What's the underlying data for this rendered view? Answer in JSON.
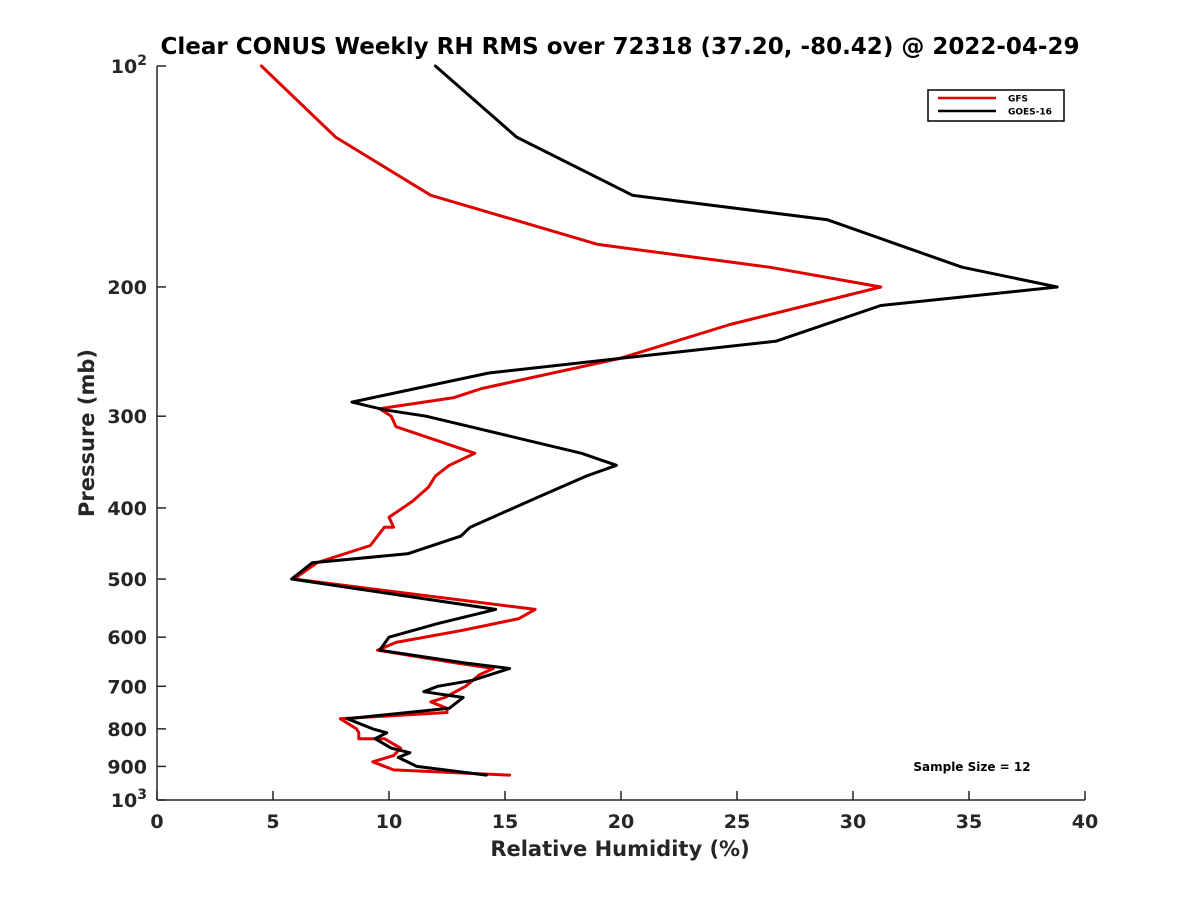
{
  "chart_data": {
    "type": "line",
    "title": "Clear CONUS Weekly RH RMS over 72318 (37.20, -80.42) @ 2022-04-29",
    "xlabel": "Relative Humidity (%)",
    "ylabel": "Pressure (mb)",
    "xlim": [
      0,
      40
    ],
    "ylim": [
      100,
      1000
    ],
    "y_scale": "log",
    "y_reversed": true,
    "x_ticks": [
      "0",
      "5",
      "10",
      "15",
      "20",
      "25",
      "30",
      "35",
      "40"
    ],
    "x_tick_values": [
      0,
      5,
      10,
      15,
      20,
      25,
      30,
      35,
      40
    ],
    "y_ticks": [
      {
        "value": 100,
        "base": "10",
        "exp": "2"
      },
      {
        "value": 200,
        "label": "200"
      },
      {
        "value": 300,
        "label": "300"
      },
      {
        "value": 400,
        "label": "400"
      },
      {
        "value": 500,
        "label": "500"
      },
      {
        "value": 600,
        "label": "600"
      },
      {
        "value": 700,
        "label": "700"
      },
      {
        "value": 800,
        "label": "800"
      },
      {
        "value": 900,
        "label": "900"
      },
      {
        "value": 1000,
        "base": "10",
        "exp": "3"
      }
    ],
    "legend_position": "top-right",
    "annotation": "Sample Size = 12",
    "series": [
      {
        "name": "GFS",
        "color": "#e00000",
        "points": [
          {
            "x": 4.5,
            "y": 100
          },
          {
            "x": 7.7,
            "y": 125
          },
          {
            "x": 11.8,
            "y": 150
          },
          {
            "x": 19.0,
            "y": 175
          },
          {
            "x": 26.4,
            "y": 188
          },
          {
            "x": 31.2,
            "y": 200
          },
          {
            "x": 24.7,
            "y": 225
          },
          {
            "x": 20.0,
            "y": 250
          },
          {
            "x": 14.0,
            "y": 275
          },
          {
            "x": 12.8,
            "y": 283
          },
          {
            "x": 9.6,
            "y": 293
          },
          {
            "x": 10.1,
            "y": 300
          },
          {
            "x": 10.3,
            "y": 310
          },
          {
            "x": 13.7,
            "y": 337
          },
          {
            "x": 12.6,
            "y": 350
          },
          {
            "x": 12.0,
            "y": 362
          },
          {
            "x": 11.7,
            "y": 375
          },
          {
            "x": 11.0,
            "y": 392
          },
          {
            "x": 10.0,
            "y": 412
          },
          {
            "x": 10.2,
            "y": 425
          },
          {
            "x": 9.8,
            "y": 425
          },
          {
            "x": 9.2,
            "y": 450
          },
          {
            "x": 6.9,
            "y": 475
          },
          {
            "x": 5.9,
            "y": 500
          },
          {
            "x": 16.3,
            "y": 550
          },
          {
            "x": 15.6,
            "y": 566
          },
          {
            "x": 13.2,
            "y": 587
          },
          {
            "x": 10.3,
            "y": 610
          },
          {
            "x": 9.5,
            "y": 625
          },
          {
            "x": 12.8,
            "y": 650
          },
          {
            "x": 14.5,
            "y": 662
          },
          {
            "x": 13.9,
            "y": 675
          },
          {
            "x": 13.3,
            "y": 700
          },
          {
            "x": 12.4,
            "y": 725
          },
          {
            "x": 11.8,
            "y": 735
          },
          {
            "x": 12.5,
            "y": 750
          },
          {
            "x": 12.5,
            "y": 760
          },
          {
            "x": 7.9,
            "y": 775
          },
          {
            "x": 8.6,
            "y": 800
          },
          {
            "x": 8.7,
            "y": 810
          },
          {
            "x": 8.7,
            "y": 825
          },
          {
            "x": 9.8,
            "y": 825
          },
          {
            "x": 10.5,
            "y": 850
          },
          {
            "x": 10.2,
            "y": 870
          },
          {
            "x": 9.3,
            "y": 887
          },
          {
            "x": 10.2,
            "y": 910
          },
          {
            "x": 15.2,
            "y": 925
          }
        ]
      },
      {
        "name": "GOES-16",
        "color": "#000000",
        "points": [
          {
            "x": 12.0,
            "y": 100
          },
          {
            "x": 15.5,
            "y": 125
          },
          {
            "x": 20.5,
            "y": 150
          },
          {
            "x": 28.9,
            "y": 162
          },
          {
            "x": 34.7,
            "y": 188
          },
          {
            "x": 38.8,
            "y": 200
          },
          {
            "x": 31.2,
            "y": 212
          },
          {
            "x": 26.7,
            "y": 237
          },
          {
            "x": 14.3,
            "y": 262
          },
          {
            "x": 8.4,
            "y": 287
          },
          {
            "x": 9.8,
            "y": 294
          },
          {
            "x": 11.6,
            "y": 300
          },
          {
            "x": 18.3,
            "y": 337
          },
          {
            "x": 19.8,
            "y": 350
          },
          {
            "x": 18.5,
            "y": 362
          },
          {
            "x": 16.4,
            "y": 387
          },
          {
            "x": 13.5,
            "y": 425
          },
          {
            "x": 13.1,
            "y": 437
          },
          {
            "x": 10.8,
            "y": 462
          },
          {
            "x": 6.7,
            "y": 475
          },
          {
            "x": 5.8,
            "y": 500
          },
          {
            "x": 14.6,
            "y": 550
          },
          {
            "x": 12.1,
            "y": 575
          },
          {
            "x": 10.0,
            "y": 600
          },
          {
            "x": 9.6,
            "y": 625
          },
          {
            "x": 13.2,
            "y": 650
          },
          {
            "x": 15.2,
            "y": 662
          },
          {
            "x": 13.6,
            "y": 687
          },
          {
            "x": 12.1,
            "y": 700
          },
          {
            "x": 11.5,
            "y": 712
          },
          {
            "x": 13.2,
            "y": 725
          },
          {
            "x": 12.6,
            "y": 750
          },
          {
            "x": 8.2,
            "y": 775
          },
          {
            "x": 9.3,
            "y": 800
          },
          {
            "x": 9.9,
            "y": 810
          },
          {
            "x": 9.4,
            "y": 825
          },
          {
            "x": 10.1,
            "y": 850
          },
          {
            "x": 10.9,
            "y": 862
          },
          {
            "x": 10.4,
            "y": 875
          },
          {
            "x": 11.2,
            "y": 900
          },
          {
            "x": 14.2,
            "y": 925
          }
        ]
      }
    ]
  }
}
